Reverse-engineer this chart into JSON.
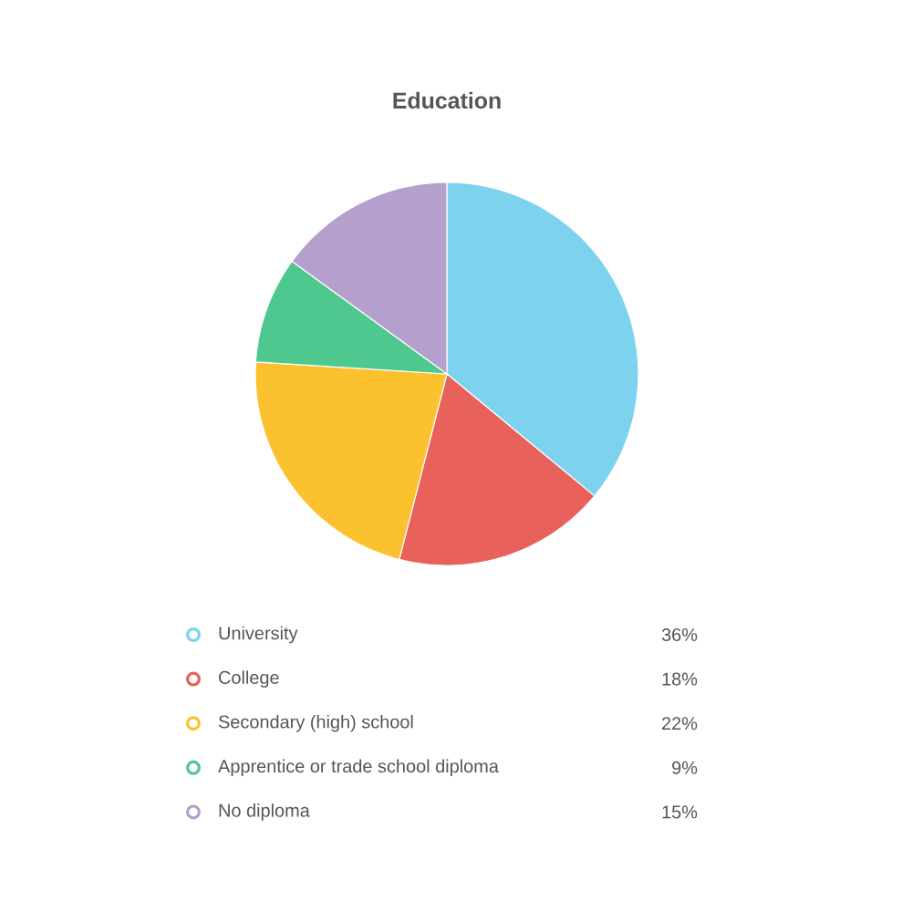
{
  "chart_data": {
    "type": "pie",
    "title": "Education",
    "categories": [
      "University",
      "College",
      "Secondary (high) school",
      "Apprentice or trade school diploma",
      "No diploma"
    ],
    "values": [
      36,
      18,
      22,
      9,
      15
    ],
    "value_labels": [
      "36%",
      "18%",
      "22%",
      "9%",
      "15%"
    ],
    "colors": [
      "#7dd3ee",
      "#e8615a",
      "#fcc12e",
      "#4fc88f",
      "#b59fcc"
    ],
    "legend": "bottom"
  }
}
